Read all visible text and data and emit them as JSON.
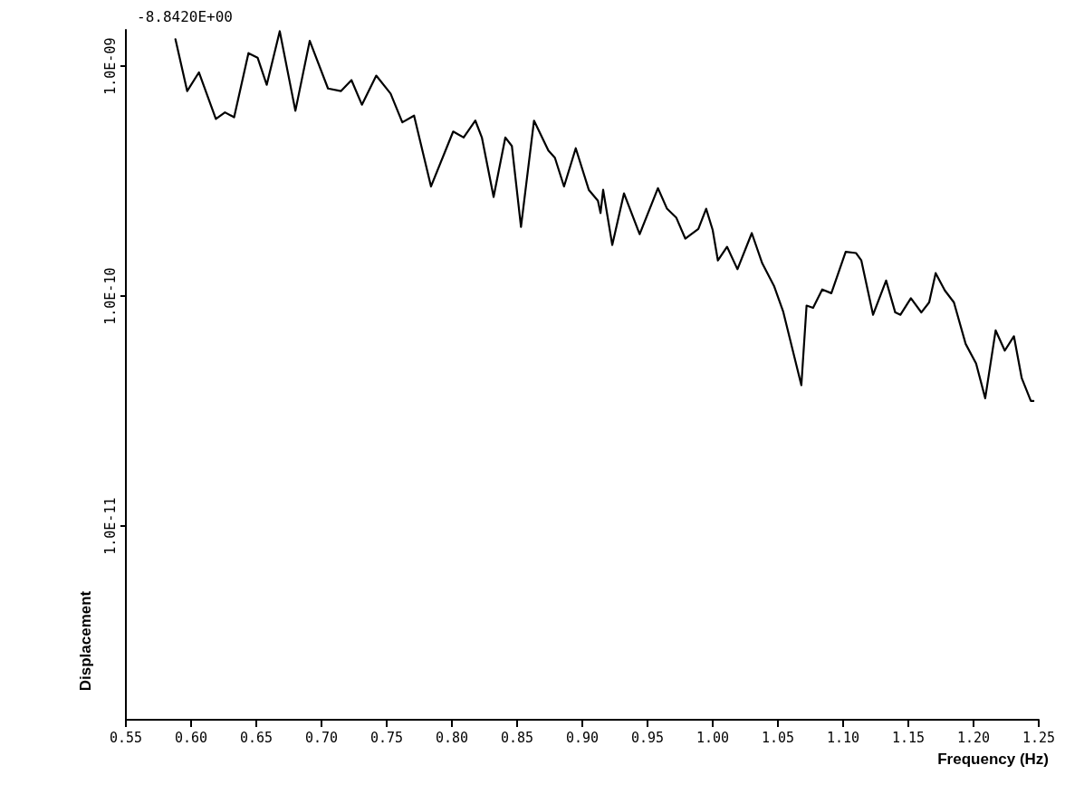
{
  "chart_data": {
    "type": "line",
    "xlabel": "Frequency (Hz)",
    "ylabel": "Displacement",
    "annotations": [
      "-8.8420E+00"
    ],
    "x": [
      0.588,
      0.597,
      0.606,
      0.619,
      0.626,
      0.633,
      0.644,
      0.651,
      0.658,
      0.668,
      0.68,
      0.691,
      0.705,
      0.715,
      0.723,
      0.731,
      0.742,
      0.753,
      0.762,
      0.771,
      0.784,
      0.801,
      0.809,
      0.818,
      0.823,
      0.832,
      0.841,
      0.846,
      0.853,
      0.863,
      0.874,
      0.879,
      0.886,
      0.895,
      0.905,
      0.912,
      0.914,
      0.916,
      0.923,
      0.932,
      0.944,
      0.958,
      0.965,
      0.972,
      0.979,
      0.989,
      0.995,
      1.0,
      1.004,
      1.011,
      1.019,
      1.03,
      1.038,
      1.047,
      1.054,
      1.068,
      1.072,
      1.077,
      1.084,
      1.091,
      1.102,
      1.11,
      1.114,
      1.123,
      1.133,
      1.14,
      1.144,
      1.152,
      1.16,
      1.166,
      1.171,
      1.178,
      1.185,
      1.194,
      1.202,
      1.209,
      1.217,
      1.224,
      1.231,
      1.237,
      1.244,
      1.246
    ],
    "series": [
      {
        "color": "#000000",
        "values": [
          1.31e-09,
          7.8e-10,
          9.4e-10,
          5.9e-10,
          6.3e-10,
          6e-10,
          1.14e-09,
          1.09e-09,
          8.3e-10,
          1.42e-09,
          6.4e-10,
          1.29e-09,
          8e-10,
          7.8e-10,
          8.7e-10,
          6.8e-10,
          9.1e-10,
          7.6e-10,
          5.7e-10,
          6.1e-10,
          3e-10,
          5.2e-10,
          4.9e-10,
          5.8e-10,
          4.9e-10,
          2.7e-10,
          4.9e-10,
          4.5e-10,
          2e-10,
          5.8e-10,
          4.3e-10,
          4e-10,
          3e-10,
          4.4e-10,
          2.9e-10,
          2.6e-10,
          2.3e-10,
          2.9e-10,
          1.67e-10,
          2.8e-10,
          1.86e-10,
          2.95e-10,
          2.4e-10,
          2.2e-10,
          1.78e-10,
          1.96e-10,
          2.4e-10,
          1.94e-10,
          1.43e-10,
          1.64e-10,
          1.31e-10,
          1.88e-10,
          1.39e-10,
          1.11e-10,
          8.6e-11,
          4.1e-11,
          9.1e-11,
          8.9e-11,
          1.07e-10,
          1.03e-10,
          1.56e-10,
          1.54e-10,
          1.43e-10,
          8.3e-11,
          1.17e-10,
          8.5e-11,
          8.3e-11,
          9.8e-11,
          8.5e-11,
          9.4e-11,
          1.26e-10,
          1.06e-10,
          9.4e-11,
          6.2e-11,
          5.1e-11,
          3.6e-11,
          7.1e-11,
          5.8e-11,
          6.7e-11,
          4.4e-11,
          3.5e-11,
          3.5e-11
        ]
      }
    ],
    "xlim": [
      0.55,
      1.25
    ],
    "xticks": [
      {
        "value": 0.55,
        "label": "0.55"
      },
      {
        "value": 0.6,
        "label": "0.60"
      },
      {
        "value": 0.65,
        "label": "0.65"
      },
      {
        "value": 0.7,
        "label": "0.70"
      },
      {
        "value": 0.75,
        "label": "0.75"
      },
      {
        "value": 0.8,
        "label": "0.80"
      },
      {
        "value": 0.85,
        "label": "0.85"
      },
      {
        "value": 0.9,
        "label": "0.90"
      },
      {
        "value": 0.95,
        "label": "0.95"
      },
      {
        "value": 1.0,
        "label": "1.00"
      },
      {
        "value": 1.05,
        "label": "1.05"
      },
      {
        "value": 1.1,
        "label": "1.10"
      },
      {
        "value": 1.15,
        "label": "1.15"
      },
      {
        "value": 1.2,
        "label": "1.20"
      },
      {
        "value": 1.25,
        "label": "1.25"
      }
    ],
    "ylim": [
      1.439e-12,
      1.439e-09
    ],
    "yticks": [
      {
        "value": 1e-11,
        "label": "1.0E-11"
      },
      {
        "value": 1e-10,
        "label": "1.0E-10"
      },
      {
        "value": 1e-09,
        "label": "1.0E-09"
      }
    ],
    "log": true,
    "grid": false,
    "marker": "none",
    "line_style": "solid"
  }
}
